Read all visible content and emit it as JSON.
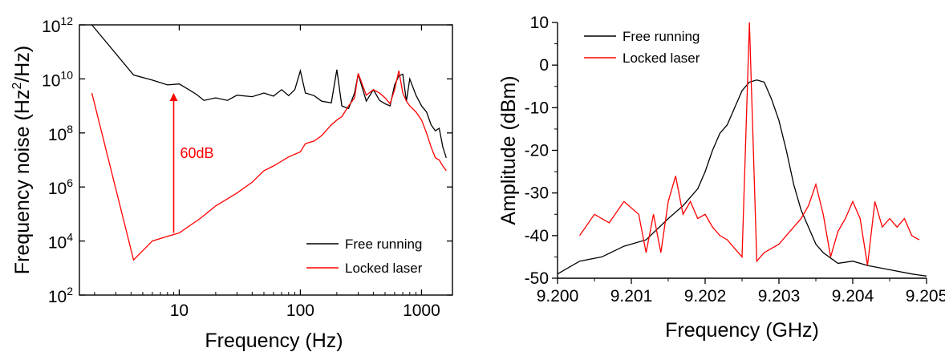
{
  "chart_data": [
    {
      "type": "line",
      "xlabel": "Frequency (Hz)",
      "ylabel_main": "Frequency noise (Hz",
      "ylabel_sup": "2",
      "ylabel_end": "/Hz)",
      "x_scale": "log",
      "y_scale": "log",
      "xlim": [
        1.5,
        1800
      ],
      "ylim": [
        100,
        1000000000000.0
      ],
      "x_ticks": [
        {
          "value": 10,
          "label": "10"
        },
        {
          "value": 100,
          "label": "100"
        },
        {
          "value": 1000,
          "label": "1000"
        }
      ],
      "y_ticks": [
        {
          "value": 100,
          "base": "10",
          "exp": "2"
        },
        {
          "value": 10000,
          "base": "10",
          "exp": "4"
        },
        {
          "value": 1000000,
          "base": "10",
          "exp": "6"
        },
        {
          "value": 100000000,
          "base": "10",
          "exp": "8"
        },
        {
          "value": 10000000000,
          "base": "10",
          "exp": "10"
        },
        {
          "value": 1000000000000,
          "base": "10",
          "exp": "12"
        }
      ],
      "legend": {
        "position": "bottom-right",
        "entries": [
          "Free running",
          "Locked laser"
        ]
      },
      "annotation": {
        "text": "60dB",
        "x": 9,
        "y_from": 20000,
        "y_to": 3000000000,
        "color": "#ff0000"
      },
      "series": [
        {
          "name": "Free running",
          "color": "#000000",
          "points": [
            [
              1.9,
              1000000000000.0
            ],
            [
              4.2,
              14000000000.0
            ],
            [
              6,
              9000000000.0
            ],
            [
              8,
              6000000000.0
            ],
            [
              10,
              6500000000.0
            ],
            [
              12,
              4000000000.0
            ],
            [
              14,
              2600000000.0
            ],
            [
              16,
              1600000000.0
            ],
            [
              20,
              2000000000.0
            ],
            [
              25,
              1600000000.0
            ],
            [
              30,
              2500000000.0
            ],
            [
              40,
              2200000000.0
            ],
            [
              50,
              3000000000.0
            ],
            [
              60,
              2300000000.0
            ],
            [
              70,
              4000000000.0
            ],
            [
              80,
              2400000000.0
            ],
            [
              90,
              4000000000.0
            ],
            [
              100,
              20000000000.0
            ],
            [
              110,
              3000000000.0
            ],
            [
              130,
              2400000000.0
            ],
            [
              150,
              1500000000.0
            ],
            [
              180,
              1300000000.0
            ],
            [
              200,
              22000000000.0
            ],
            [
              220,
              1000000000.0
            ],
            [
              250,
              800000000.0
            ],
            [
              280,
              3000000000.0
            ],
            [
              300,
              15000000000.0
            ],
            [
              350,
              1500000000.0
            ],
            [
              400,
              4000000000.0
            ],
            [
              450,
              1600000000.0
            ],
            [
              500,
              1200000000.0
            ],
            [
              550,
              1000000000.0
            ],
            [
              600,
              6000000000.0
            ],
            [
              650,
              13000000000.0
            ],
            [
              700,
              15000000000.0
            ],
            [
              750,
              1500000000.0
            ],
            [
              800,
              10000000000.0
            ],
            [
              900,
              2500000000.0
            ],
            [
              1000,
              1000000000.0
            ],
            [
              1100,
              600000000.0
            ],
            [
              1200,
              200000000.0
            ],
            [
              1300,
              120000000.0
            ],
            [
              1400,
              150000000.0
            ],
            [
              1500,
              30000000.0
            ],
            [
              1600,
              12000000.0
            ]
          ]
        },
        {
          "name": "Locked laser",
          "color": "#ff0000",
          "points": [
            [
              1.9,
              3000000000.0
            ],
            [
              4.2,
              2000
            ],
            [
              6,
              10000.0
            ],
            [
              8,
              15000.0
            ],
            [
              10,
              20000.0
            ],
            [
              15,
              70000.0
            ],
            [
              20,
              200000.0
            ],
            [
              30,
              600000.0
            ],
            [
              40,
              1500000.0
            ],
            [
              50,
              4000000.0
            ],
            [
              60,
              6000000.0
            ],
            [
              70,
              9000000.0
            ],
            [
              80,
              13000000.0
            ],
            [
              100,
              20000000.0
            ],
            [
              110,
              40000000.0
            ],
            [
              130,
              50000000.0
            ],
            [
              150,
              80000000.0
            ],
            [
              180,
              200000000.0
            ],
            [
              200,
              300000000.0
            ],
            [
              220,
              400000000.0
            ],
            [
              250,
              1000000000.0
            ],
            [
              280,
              2000000000.0
            ],
            [
              300,
              16000000000.0
            ],
            [
              350,
              2500000000.0
            ],
            [
              400,
              4000000000.0
            ],
            [
              450,
              3000000000.0
            ],
            [
              500,
              2000000000.0
            ],
            [
              550,
              1200000000.0
            ],
            [
              600,
              4000000000.0
            ],
            [
              650,
              20000000000.0
            ],
            [
              700,
              3000000000.0
            ],
            [
              750,
              1500000000.0
            ],
            [
              800,
              1000000000.0
            ],
            [
              900,
              600000000.0
            ],
            [
              1000,
              300000000.0
            ],
            [
              1100,
              100000000.0
            ],
            [
              1200,
              30000000.0
            ],
            [
              1300,
              12000000.0
            ],
            [
              1400,
              10000000.0
            ],
            [
              1500,
              6000000.0
            ],
            [
              1600,
              4000000.0
            ]
          ]
        }
      ]
    },
    {
      "type": "line",
      "xlabel": "Frequency (GHz)",
      "ylabel": "Amplitude (dBm)",
      "xlim": [
        9.2,
        9.205
      ],
      "ylim": [
        -50,
        10
      ],
      "x_ticks": [
        "9.200",
        "9.201",
        "9.202",
        "9.203",
        "9.204",
        "9.205"
      ],
      "y_ticks": [
        "-50",
        "-40",
        "-30",
        "-20",
        "-10",
        "0",
        "10"
      ],
      "legend": {
        "position": "top-left",
        "entries": [
          "Free running",
          "Locked laser"
        ]
      },
      "series": [
        {
          "name": "Free running",
          "color": "#000000",
          "points": [
            [
              9.2,
              -49
            ],
            [
              9.2003,
              -46
            ],
            [
              9.2006,
              -45
            ],
            [
              9.2009,
              -42.5
            ],
            [
              9.2012,
              -41
            ],
            [
              9.2015,
              -36
            ],
            [
              9.2017,
              -33
            ],
            [
              9.2019,
              -29
            ],
            [
              9.202,
              -25
            ],
            [
              9.2021,
              -20
            ],
            [
              9.2022,
              -16
            ],
            [
              9.2023,
              -14
            ],
            [
              9.2024,
              -10
            ],
            [
              9.2025,
              -6
            ],
            [
              9.2026,
              -4
            ],
            [
              9.2027,
              -3.5
            ],
            [
              9.2028,
              -4
            ],
            [
              9.2029,
              -8
            ],
            [
              9.203,
              -13
            ],
            [
              9.2031,
              -20
            ],
            [
              9.2032,
              -28
            ],
            [
              9.2033,
              -34
            ],
            [
              9.2034,
              -38
            ],
            [
              9.2035,
              -42
            ],
            [
              9.2036,
              -44
            ],
            [
              9.2038,
              -46.5
            ],
            [
              9.204,
              -46
            ],
            [
              9.2042,
              -47
            ],
            [
              9.2045,
              -48
            ],
            [
              9.2048,
              -49
            ],
            [
              9.205,
              -49.5
            ]
          ]
        },
        {
          "name": "Locked laser",
          "color": "#ff0000",
          "points": [
            [
              9.2003,
              -40
            ],
            [
              9.2005,
              -35
            ],
            [
              9.2007,
              -37
            ],
            [
              9.2009,
              -32
            ],
            [
              9.2011,
              -35
            ],
            [
              9.2012,
              -44
            ],
            [
              9.2013,
              -35
            ],
            [
              9.2014,
              -44
            ],
            [
              9.2015,
              -32
            ],
            [
              9.2016,
              -26
            ],
            [
              9.2017,
              -35
            ],
            [
              9.2018,
              -32
            ],
            [
              9.2019,
              -36
            ],
            [
              9.202,
              -35
            ],
            [
              9.2021,
              -38
            ],
            [
              9.2022,
              -40
            ],
            [
              9.2023,
              -41
            ],
            [
              9.2024,
              -43
            ],
            [
              9.2025,
              -45
            ],
            [
              9.2026,
              10
            ],
            [
              9.2027,
              -46
            ],
            [
              9.2028,
              -44
            ],
            [
              9.2029,
              -43
            ],
            [
              9.203,
              -42
            ],
            [
              9.2031,
              -40
            ],
            [
              9.2032,
              -38
            ],
            [
              9.2033,
              -36
            ],
            [
              9.2034,
              -33
            ],
            [
              9.2035,
              -28
            ],
            [
              9.2036,
              -35
            ],
            [
              9.2037,
              -45
            ],
            [
              9.2038,
              -39
            ],
            [
              9.2039,
              -36
            ],
            [
              9.204,
              -32
            ],
            [
              9.2041,
              -36
            ],
            [
              9.2042,
              -47
            ],
            [
              9.2043,
              -32
            ],
            [
              9.2044,
              -38
            ],
            [
              9.2045,
              -36
            ],
            [
              9.2046,
              -38
            ],
            [
              9.2047,
              -36
            ],
            [
              9.2048,
              -40
            ],
            [
              9.2049,
              -41
            ]
          ]
        }
      ]
    }
  ]
}
